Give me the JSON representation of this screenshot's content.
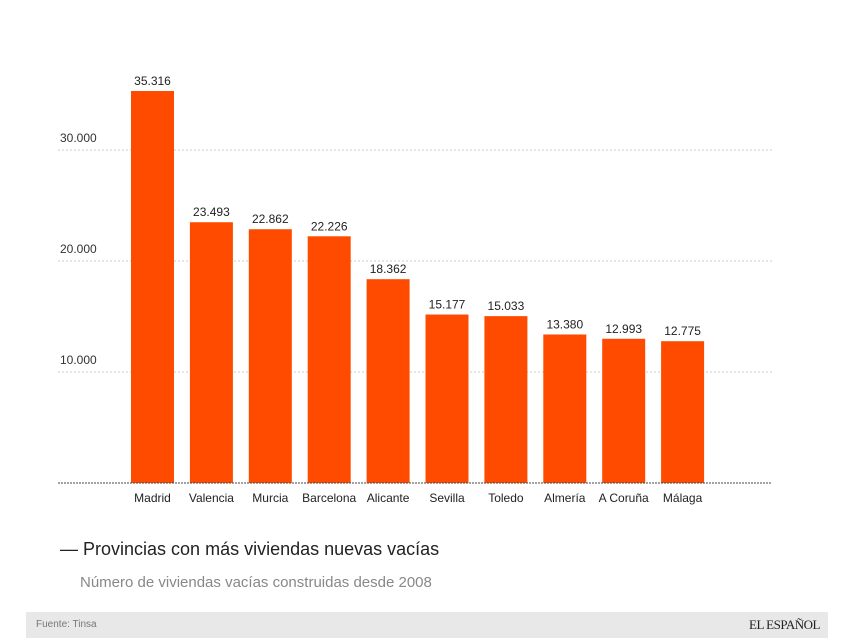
{
  "chart_data": {
    "type": "bar",
    "title": "Provincias con más viviendas nuevas vacías",
    "subtitle": "Número de viviendas vacías construidas desde 2008",
    "categories": [
      "Madrid",
      "Valencia",
      "Murcia",
      "Barcelona",
      "Alicante",
      "Sevilla",
      "Toledo",
      "Almería",
      "A Coruña",
      "Málaga"
    ],
    "values": [
      35316,
      23493,
      22862,
      22226,
      18362,
      15177,
      15033,
      13380,
      12993,
      12775
    ],
    "value_labels": [
      "35.316",
      "23.493",
      "22.862",
      "22.226",
      "18.362",
      "15.177",
      "15.033",
      "13.380",
      "12.993",
      "12.775"
    ],
    "yticks": [
      10000,
      20000,
      30000
    ],
    "ytick_labels": [
      "10.000",
      "20.000",
      "30.000"
    ],
    "ylim": [
      0,
      38000
    ],
    "grid": true,
    "bar_color": "#ff4b00"
  },
  "title_prefix": "—",
  "source": "Fuente: Tinsa",
  "logo": "EL ESPAÑOL"
}
